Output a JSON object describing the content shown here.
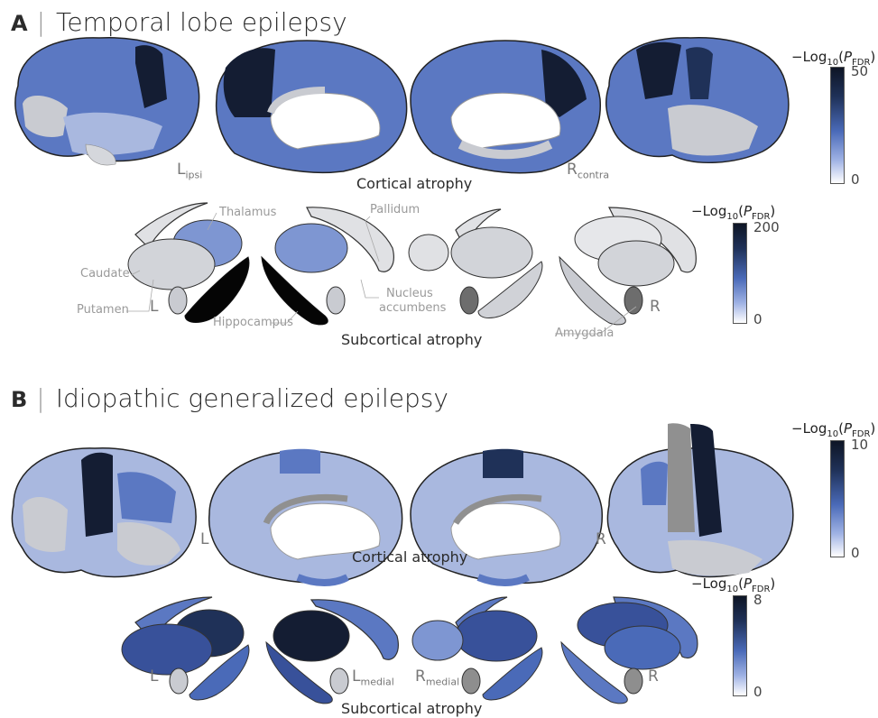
{
  "panels": [
    {
      "letter": "A",
      "title": "Temporal lobe epilepsy",
      "cortical_caption": "Cortical atrophy",
      "subcortical_caption": "Subcortical atrophy",
      "hemi_left_main": "L",
      "hemi_left_sub": "ipsi",
      "hemi_right_main": "R",
      "hemi_right_sub": "contra",
      "sub_left": "L",
      "sub_right": "R",
      "structure_labels": {
        "thalamus": "Thalamus",
        "caudate": "Caudate",
        "putamen": "Putamen",
        "pallidum": "Pallidum",
        "nucleus": "Nucleus",
        "accumbens": "accumbens",
        "hippocampus": "Hippocampus",
        "amygdala": "Amygdala"
      },
      "cortical_colorbar": {
        "title_prefix": "−Log",
        "base": "10",
        "var": "P",
        "var_sub": "FDR",
        "max": "50",
        "min": "0"
      },
      "subcortical_colorbar": {
        "title_prefix": "−Log",
        "base": "10",
        "var": "P",
        "var_sub": "FDR",
        "max": "200",
        "min": "0"
      }
    },
    {
      "letter": "B",
      "title": "Idiopathic generalized epilepsy",
      "cortical_caption": "Cortical atrophy",
      "subcortical_caption": "Subcortical atrophy",
      "hemi_left": "L",
      "hemi_right": "R",
      "sub_left": "L",
      "sub_lmedial_main": "L",
      "sub_lmedial_sub": "medial",
      "sub_rmedial_main": "R",
      "sub_rmedial_sub": "medial",
      "sub_right": "R",
      "cortical_colorbar": {
        "title_prefix": "−Log",
        "base": "10",
        "var": "P",
        "var_sub": "FDR",
        "max": "10",
        "min": "0"
      },
      "subcortical_colorbar": {
        "title_prefix": "−Log",
        "base": "10",
        "var": "P",
        "var_sub": "FDR",
        "max": "8",
        "min": "0"
      }
    }
  ],
  "colors": {
    "dark_navy": "#141d33",
    "mid_blue": "#5b78c2",
    "light_blue": "#a9b8df",
    "gray": "#c9cbd1"
  }
}
